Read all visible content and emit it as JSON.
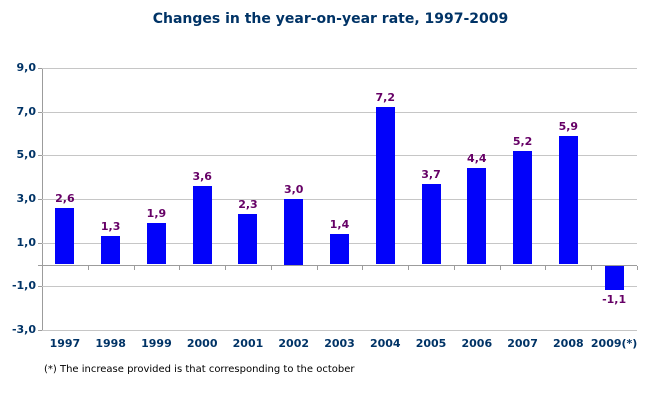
{
  "chart_data": {
    "type": "bar",
    "title": "Changes in the year-on-year rate, 1997-2009",
    "categories": [
      "1997",
      "1998",
      "1999",
      "2000",
      "2001",
      "2002",
      "2003",
      "2004",
      "2005",
      "2006",
      "2007",
      "2008",
      "2009(*)"
    ],
    "values": [
      2.6,
      1.3,
      1.9,
      3.6,
      2.3,
      3.0,
      1.4,
      7.2,
      3.7,
      4.4,
      5.2,
      5.9,
      -1.1
    ],
    "value_labels": [
      "2,6",
      "1,3",
      "1,9",
      "3,6",
      "2,3",
      "3,0",
      "1,4",
      "7,2",
      "3,7",
      "4,4",
      "5,2",
      "5,9",
      "-1,1"
    ],
    "xlabel": "",
    "ylabel": "",
    "ylim": [
      -3,
      9
    ],
    "ytick_values": [
      9,
      7,
      5,
      3,
      1,
      -1,
      -3
    ],
    "ytick_labels": [
      "9,0",
      "7,0",
      "5,0",
      "3,0",
      "1,0",
      "-1,0",
      "-3,0"
    ],
    "grid": true,
    "legend": "none",
    "bar_color": "#0202fa",
    "value_label_color": "#660066",
    "axis_text_color": "#003366",
    "gridline_color": "#c6c6c6",
    "axis_line_color": "#9c9c9c"
  },
  "footnote": "(*) The increase provided is that corresponding to the october"
}
